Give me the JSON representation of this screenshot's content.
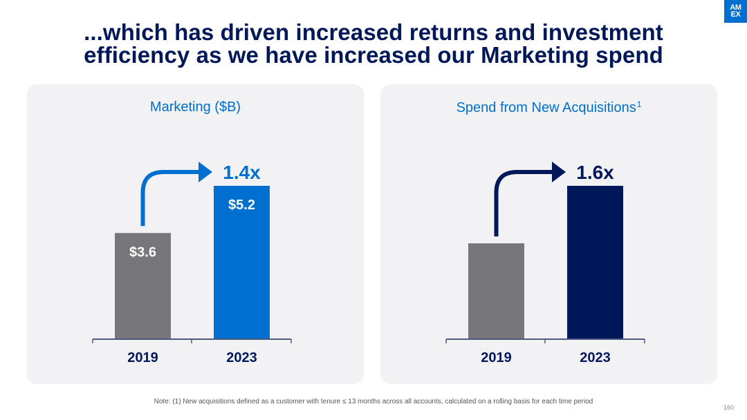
{
  "slide": {
    "title_line1": "...which has driven increased returns and investment",
    "title_line2": "efficiency as we have increased our Marketing spend",
    "logo_line1": "AM",
    "logo_line2": "EX",
    "note": "Note: (1) New acquisitions defined as a customer with tenure ≤ 13 months across all accounts, calculated on a rolling basis for each time period",
    "page_number": "160"
  },
  "colors": {
    "navy": "#00175a",
    "brand_blue": "#006fcf",
    "gray_bar": "#77777b",
    "panel_bg": "#f2f2f5"
  },
  "chart_data": [
    {
      "type": "bar",
      "title": "Marketing ($B)",
      "title_superscript": "",
      "categories": [
        "2019",
        "2023"
      ],
      "values": [
        3.6,
        5.2
      ],
      "data_labels": [
        "$3.6",
        "$5.2"
      ],
      "bar_colors": [
        "#77777b",
        "#006fcf"
      ],
      "growth_label": "1.4x",
      "growth_color": "#006fcf",
      "ylim": [
        0,
        5.2
      ],
      "xlabel": "",
      "ylabel": "",
      "grid": false
    },
    {
      "type": "bar",
      "title": "Spend from New Acquisitions",
      "title_superscript": "1",
      "categories": [
        "2019",
        "2023"
      ],
      "values": [
        1.0,
        1.6
      ],
      "data_labels": [
        "",
        ""
      ],
      "bar_colors": [
        "#77777b",
        "#00175a"
      ],
      "growth_label": "1.6x",
      "growth_color": "#00175a",
      "ylim": [
        0,
        1.6
      ],
      "xlabel": "",
      "ylabel": "",
      "grid": false
    }
  ]
}
